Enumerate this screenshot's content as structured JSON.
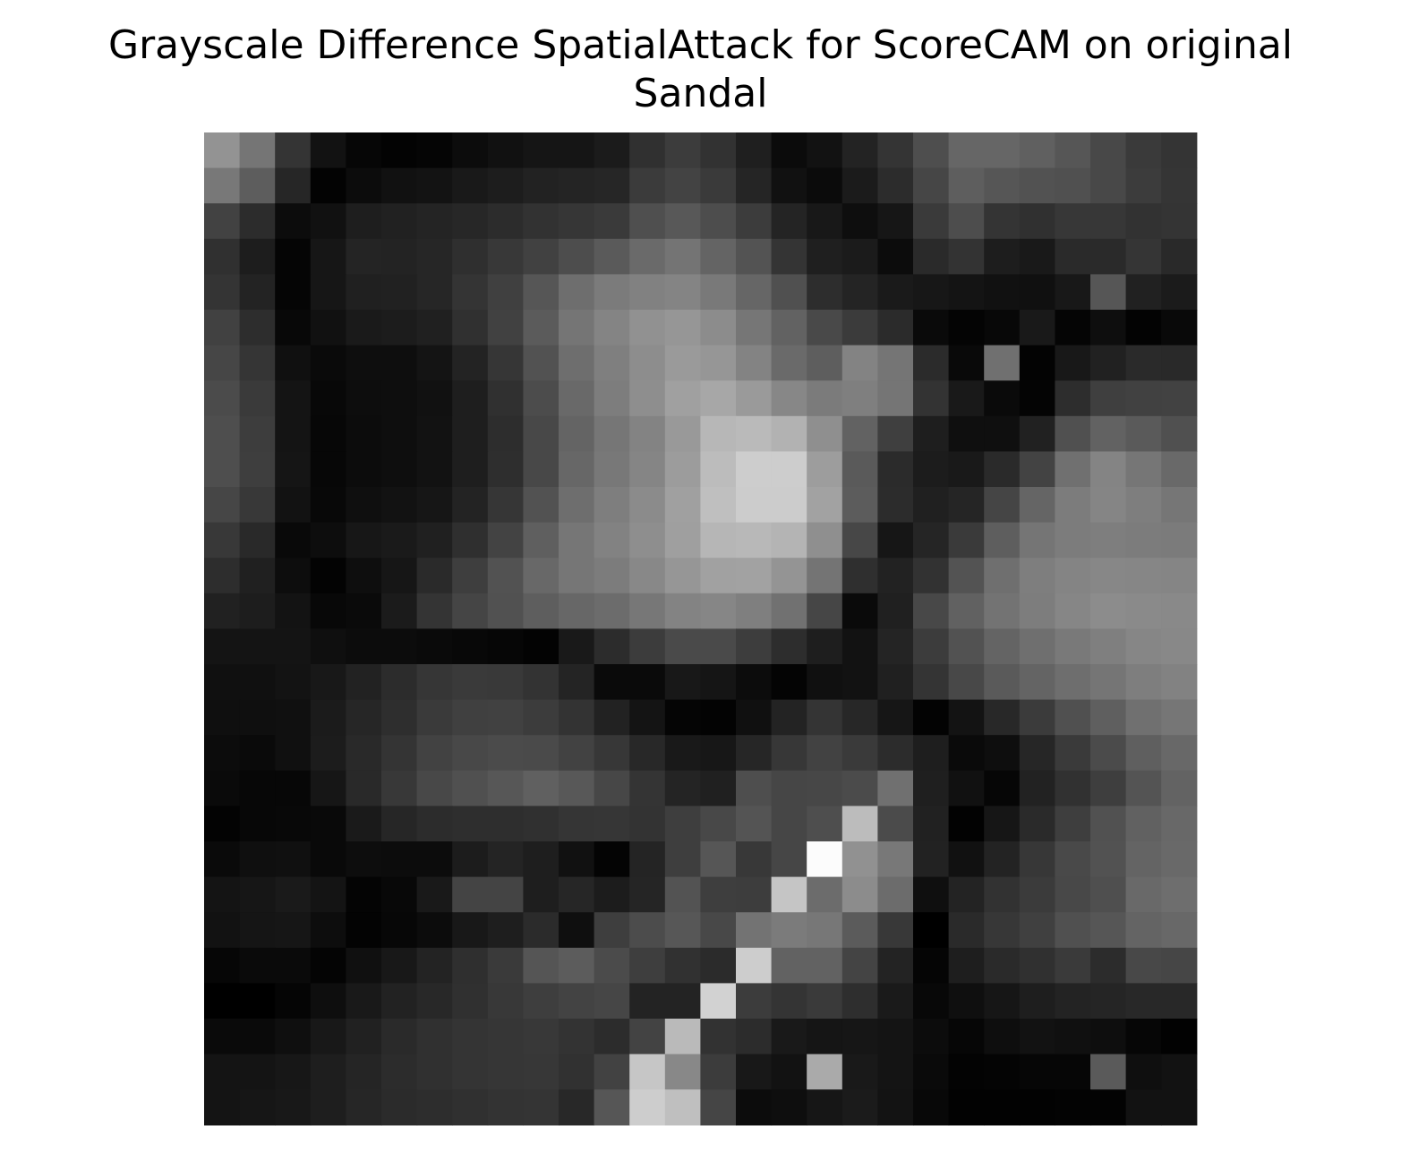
{
  "chart_data": {
    "type": "heatmap",
    "title_line1": "Grayscale Difference SpatialAttack for ScoreCAM on original",
    "title_line2": "Sandal",
    "colormap": "gray",
    "axes_visible": false,
    "rows": 28,
    "cols": 28,
    "values": [
      [
        147,
        117,
        52,
        18,
        6,
        3,
        5,
        12,
        17,
        21,
        21,
        27,
        48,
        60,
        50,
        31,
        11,
        18,
        35,
        52,
        78,
        102,
        102,
        96,
        86,
        72,
        58,
        52
      ],
      [
        120,
        93,
        38,
        3,
        12,
        17,
        19,
        25,
        29,
        34,
        36,
        38,
        59,
        67,
        58,
        37,
        17,
        11,
        27,
        44,
        70,
        94,
        86,
        82,
        80,
        72,
        60,
        53
      ],
      [
        66,
        44,
        12,
        17,
        30,
        33,
        36,
        39,
        44,
        50,
        54,
        58,
        79,
        88,
        77,
        60,
        36,
        24,
        14,
        22,
        58,
        77,
        52,
        48,
        55,
        55,
        50,
        52
      ],
      [
        48,
        29,
        5,
        22,
        36,
        35,
        38,
        47,
        56,
        65,
        77,
        90,
        106,
        116,
        100,
        83,
        52,
        31,
        27,
        12,
        42,
        51,
        29,
        25,
        42,
        42,
        53,
        41
      ],
      [
        52,
        35,
        5,
        22,
        32,
        33,
        38,
        52,
        64,
        86,
        110,
        123,
        129,
        132,
        121,
        102,
        80,
        45,
        36,
        26,
        23,
        20,
        17,
        16,
        24,
        86,
        33,
        27
      ],
      [
        65,
        45,
        8,
        17,
        26,
        28,
        32,
        48,
        65,
        91,
        117,
        132,
        145,
        150,
        140,
        118,
        98,
        73,
        59,
        43,
        10,
        4,
        8,
        25,
        5,
        14,
        3,
        9
      ],
      [
        70,
        53,
        16,
        10,
        14,
        14,
        20,
        35,
        54,
        82,
        110,
        127,
        141,
        154,
        150,
        131,
        106,
        94,
        131,
        117,
        43,
        9,
        112,
        3,
        24,
        33,
        42,
        41
      ],
      [
        75,
        58,
        20,
        8,
        13,
        14,
        17,
        30,
        48,
        76,
        105,
        125,
        142,
        160,
        167,
        154,
        135,
        123,
        127,
        117,
        51,
        25,
        10,
        4,
        45,
        63,
        65,
        66
      ],
      [
        78,
        61,
        20,
        7,
        12,
        14,
        18,
        30,
        45,
        72,
        100,
        118,
        131,
        153,
        183,
        186,
        178,
        143,
        98,
        63,
        30,
        15,
        15,
        33,
        80,
        98,
        90,
        80
      ],
      [
        78,
        62,
        21,
        7,
        12,
        14,
        18,
        30,
        46,
        72,
        103,
        120,
        133,
        156,
        188,
        205,
        205,
        157,
        90,
        43,
        28,
        25,
        42,
        67,
        112,
        132,
        118,
        105
      ],
      [
        70,
        56,
        18,
        8,
        15,
        18,
        22,
        35,
        54,
        82,
        110,
        126,
        139,
        160,
        191,
        204,
        204,
        162,
        92,
        44,
        32,
        37,
        69,
        101,
        124,
        133,
        126,
        118
      ],
      [
        56,
        41,
        9,
        13,
        23,
        26,
        32,
        47,
        67,
        95,
        118,
        130,
        142,
        159,
        182,
        184,
        180,
        143,
        71,
        22,
        37,
        58,
        94,
        117,
        124,
        126,
        124,
        123
      ],
      [
        45,
        32,
        13,
        3,
        14,
        22,
        42,
        62,
        82,
        104,
        118,
        124,
        136,
        150,
        161,
        162,
        148,
        116,
        47,
        34,
        50,
        83,
        111,
        126,
        132,
        135,
        134,
        133
      ],
      [
        33,
        29,
        19,
        8,
        10,
        27,
        52,
        69,
        81,
        94,
        103,
        108,
        119,
        131,
        134,
        127,
        113,
        70,
        10,
        32,
        72,
        97,
        115,
        125,
        134,
        140,
        138,
        137
      ],
      [
        20,
        20,
        20,
        15,
        12,
        12,
        10,
        8,
        6,
        3,
        25,
        44,
        60,
        74,
        74,
        61,
        45,
        30,
        18,
        36,
        60,
        82,
        100,
        111,
        121,
        127,
        134,
        136
      ],
      [
        16,
        16,
        19,
        24,
        34,
        44,
        54,
        58,
        57,
        51,
        36,
        10,
        10,
        24,
        21,
        12,
        4,
        16,
        18,
        32,
        52,
        72,
        90,
        100,
        110,
        117,
        126,
        130
      ],
      [
        15,
        15,
        16,
        27,
        38,
        46,
        58,
        64,
        65,
        60,
        51,
        34,
        20,
        5,
        3,
        16,
        35,
        52,
        39,
        22,
        3,
        19,
        40,
        59,
        80,
        95,
        112,
        118
      ],
      [
        12,
        10,
        16,
        28,
        41,
        52,
        66,
        72,
        75,
        74,
        66,
        55,
        40,
        25,
        23,
        38,
        55,
        66,
        58,
        44,
        30,
        10,
        14,
        38,
        58,
        75,
        95,
        104
      ],
      [
        10,
        7,
        7,
        22,
        41,
        56,
        72,
        80,
        87,
        96,
        88,
        71,
        52,
        36,
        32,
        78,
        70,
        71,
        75,
        112,
        31,
        17,
        6,
        34,
        49,
        62,
        84,
        99
      ],
      [
        3,
        7,
        8,
        9,
        26,
        38,
        44,
        46,
        46,
        48,
        53,
        54,
        51,
        62,
        72,
        84,
        70,
        78,
        188,
        75,
        33,
        2,
        22,
        42,
        62,
        81,
        97,
        104
      ],
      [
        10,
        15,
        16,
        9,
        13,
        12,
        12,
        28,
        36,
        30,
        17,
        4,
        36,
        62,
        86,
        56,
        70,
        252,
        145,
        120,
        34,
        17,
        35,
        55,
        73,
        82,
        100,
        105
      ],
      [
        20,
        22,
        26,
        20,
        4,
        8,
        25,
        68,
        68,
        30,
        38,
        28,
        37,
        83,
        62,
        61,
        197,
        108,
        140,
        108,
        15,
        35,
        50,
        59,
        72,
        79,
        105,
        110
      ],
      [
        18,
        21,
        22,
        13,
        3,
        7,
        12,
        24,
        30,
        43,
        15,
        62,
        76,
        87,
        72,
        115,
        123,
        119,
        91,
        56,
        0,
        42,
        55,
        64,
        80,
        86,
        100,
        104
      ],
      [
        6,
        10,
        10,
        4,
        16,
        24,
        35,
        47,
        58,
        85,
        92,
        75,
        62,
        49,
        43,
        205,
        98,
        98,
        68,
        35,
        5,
        30,
        42,
        48,
        58,
        44,
        72,
        70
      ],
      [
        0,
        0,
        5,
        14,
        25,
        34,
        40,
        48,
        56,
        62,
        67,
        70,
        35,
        35,
        210,
        60,
        52,
        58,
        46,
        26,
        8,
        15,
        22,
        30,
        35,
        37,
        40,
        40
      ],
      [
        10,
        10,
        15,
        24,
        33,
        42,
        48,
        52,
        54,
        56,
        51,
        44,
        67,
        186,
        50,
        44,
        25,
        21,
        22,
        20,
        12,
        6,
        14,
        18,
        16,
        14,
        6,
        2
      ],
      [
        20,
        20,
        23,
        30,
        37,
        44,
        48,
        52,
        54,
        55,
        49,
        66,
        198,
        136,
        60,
        24,
        18,
        170,
        25,
        20,
        10,
        3,
        4,
        6,
        6,
        90,
        15,
        18
      ],
      [
        20,
        22,
        24,
        30,
        38,
        43,
        45,
        48,
        51,
        52,
        40,
        86,
        205,
        191,
        69,
        12,
        14,
        22,
        27,
        19,
        8,
        2,
        2,
        2,
        3,
        3,
        18,
        18
      ]
    ]
  }
}
